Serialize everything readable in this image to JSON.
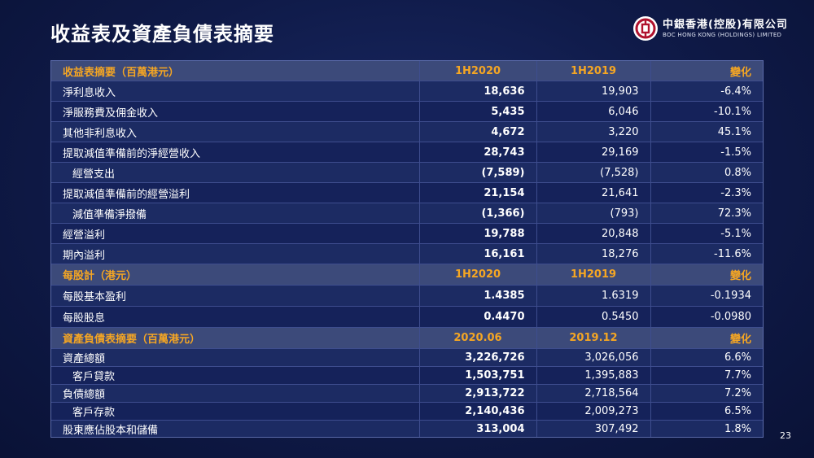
{
  "title": "收益表及資產負債表摘要",
  "logo": {
    "cn": "中銀香港(控股)有限公司",
    "en": "BOC HONG KONG (HOLDINGS) LIMITED"
  },
  "page_number": "23",
  "income": {
    "header": [
      "收益表摘要（百萬港元）",
      "1H2020",
      "1H2019",
      "變化"
    ],
    "rows": [
      [
        "淨利息收入",
        "18,636",
        "19,903",
        "-6.4%"
      ],
      [
        "淨服務費及佣金收入",
        "5,435",
        "6,046",
        "-10.1%"
      ],
      [
        "其他非利息收入",
        "4,672",
        "3,220",
        "45.1%"
      ],
      [
        "提取減值準備前的淨經營收入",
        "28,743",
        "29,169",
        "-1.5%"
      ],
      [
        "經營支出",
        "(7,589)",
        "(7,528)",
        "0.8%"
      ],
      [
        "提取減值準備前的經營溢利",
        "21,154",
        "21,641",
        "-2.3%"
      ],
      [
        "減值準備淨撥備",
        "(1,366)",
        "(793)",
        "72.3%"
      ],
      [
        "經營溢利",
        "19,788",
        "20,848",
        "-5.1%"
      ],
      [
        "期內溢利",
        "16,161",
        "18,276",
        "-11.6%"
      ]
    ]
  },
  "per_share": {
    "header": [
      "每股計（港元）",
      "1H2020",
      "1H2019",
      "變化"
    ],
    "rows": [
      [
        "每股基本盈利",
        "1.4385",
        "1.6319",
        "-0.1934"
      ],
      [
        "每股股息",
        "0.4470",
        "0.5450",
        "-0.0980"
      ]
    ]
  },
  "balance": {
    "header": [
      "資產負債表摘要（百萬港元）",
      "2020.06",
      "2019.12",
      "變化"
    ],
    "rows": [
      [
        "資產總額",
        "3,226,726",
        "3,026,056",
        "6.6%"
      ],
      [
        "客戶貸款",
        "1,503,751",
        "1,395,883",
        "7.7%"
      ],
      [
        "負債總額",
        "2,913,722",
        "2,718,564",
        "7.2%"
      ],
      [
        "客戶存款",
        "2,140,436",
        "2,009,273",
        "6.5%"
      ],
      [
        "股東應佔股本和儲備",
        "313,004",
        "307,492",
        "1.8%"
      ]
    ]
  },
  "colors": {
    "accent": "#f5a623",
    "header_bg": "#3c4a7a",
    "row_bg": "#1c2b63",
    "page_bg": "#0f1a48"
  }
}
